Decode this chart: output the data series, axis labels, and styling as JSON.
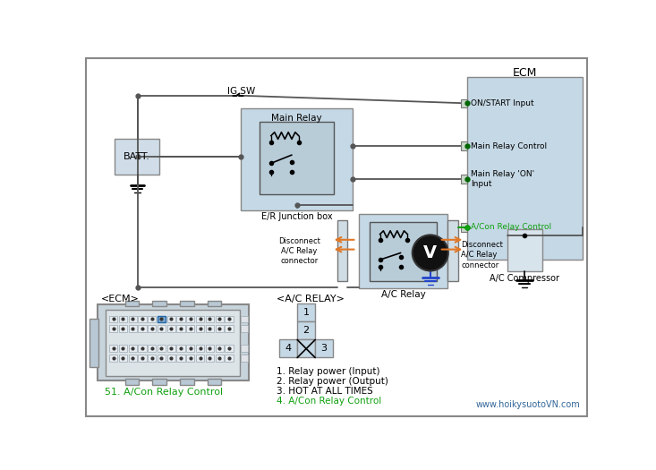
{
  "fig_width": 7.33,
  "fig_height": 5.25,
  "dpi": 100,
  "bg_color": "#ffffff",
  "ecm_bg": "#c5d8e5",
  "relay_bg": "#c5d8e5",
  "batt_bg": "#d0dde8",
  "connector_bg": "#d0dde5",
  "comp_bg": "#d8e4ec",
  "orange_color": "#e07828",
  "green_color": "#10a010",
  "blue_color": "#2244cc",
  "black_color": "#000000",
  "gray_line": "#888888",
  "wire_color": "#555555",
  "ecm_label": "ECM",
  "on_start_label": "ON/START Input",
  "main_relay_ctrl_label": "Main Relay Control",
  "main_relay_on_label": "Main Relay 'ON'\nInput",
  "acon_relay_ctrl_label": "A/Con Relay Control",
  "main_relay_label": "Main Relay",
  "er_junction_label": "E/R Junction box",
  "ac_relay_label": "A/C Relay",
  "batt_label": "BATT.",
  "ig_sw_label": "IG SW",
  "ac_comp_label": "A/C Compressor",
  "disconnect_left_label": "Disconnect\nA/C Relay\nconnector",
  "disconnect_right_label": "Disconnect\nA/C Relay\nconnector",
  "ecm_bottom_label": "<ECM>",
  "ecm_bottom_sublabel": "51. A/Con Relay Control",
  "ac_relay_bottom_label": "<A/C RELAY>",
  "legend1": "1. Relay power (Input)",
  "legend2": "2. Relay power (Output)",
  "legend3": "3. HOT AT ALL TIMES",
  "legend4": "4. A/Con Relay Control",
  "watermark": "www.hoikysuotoVN.com"
}
